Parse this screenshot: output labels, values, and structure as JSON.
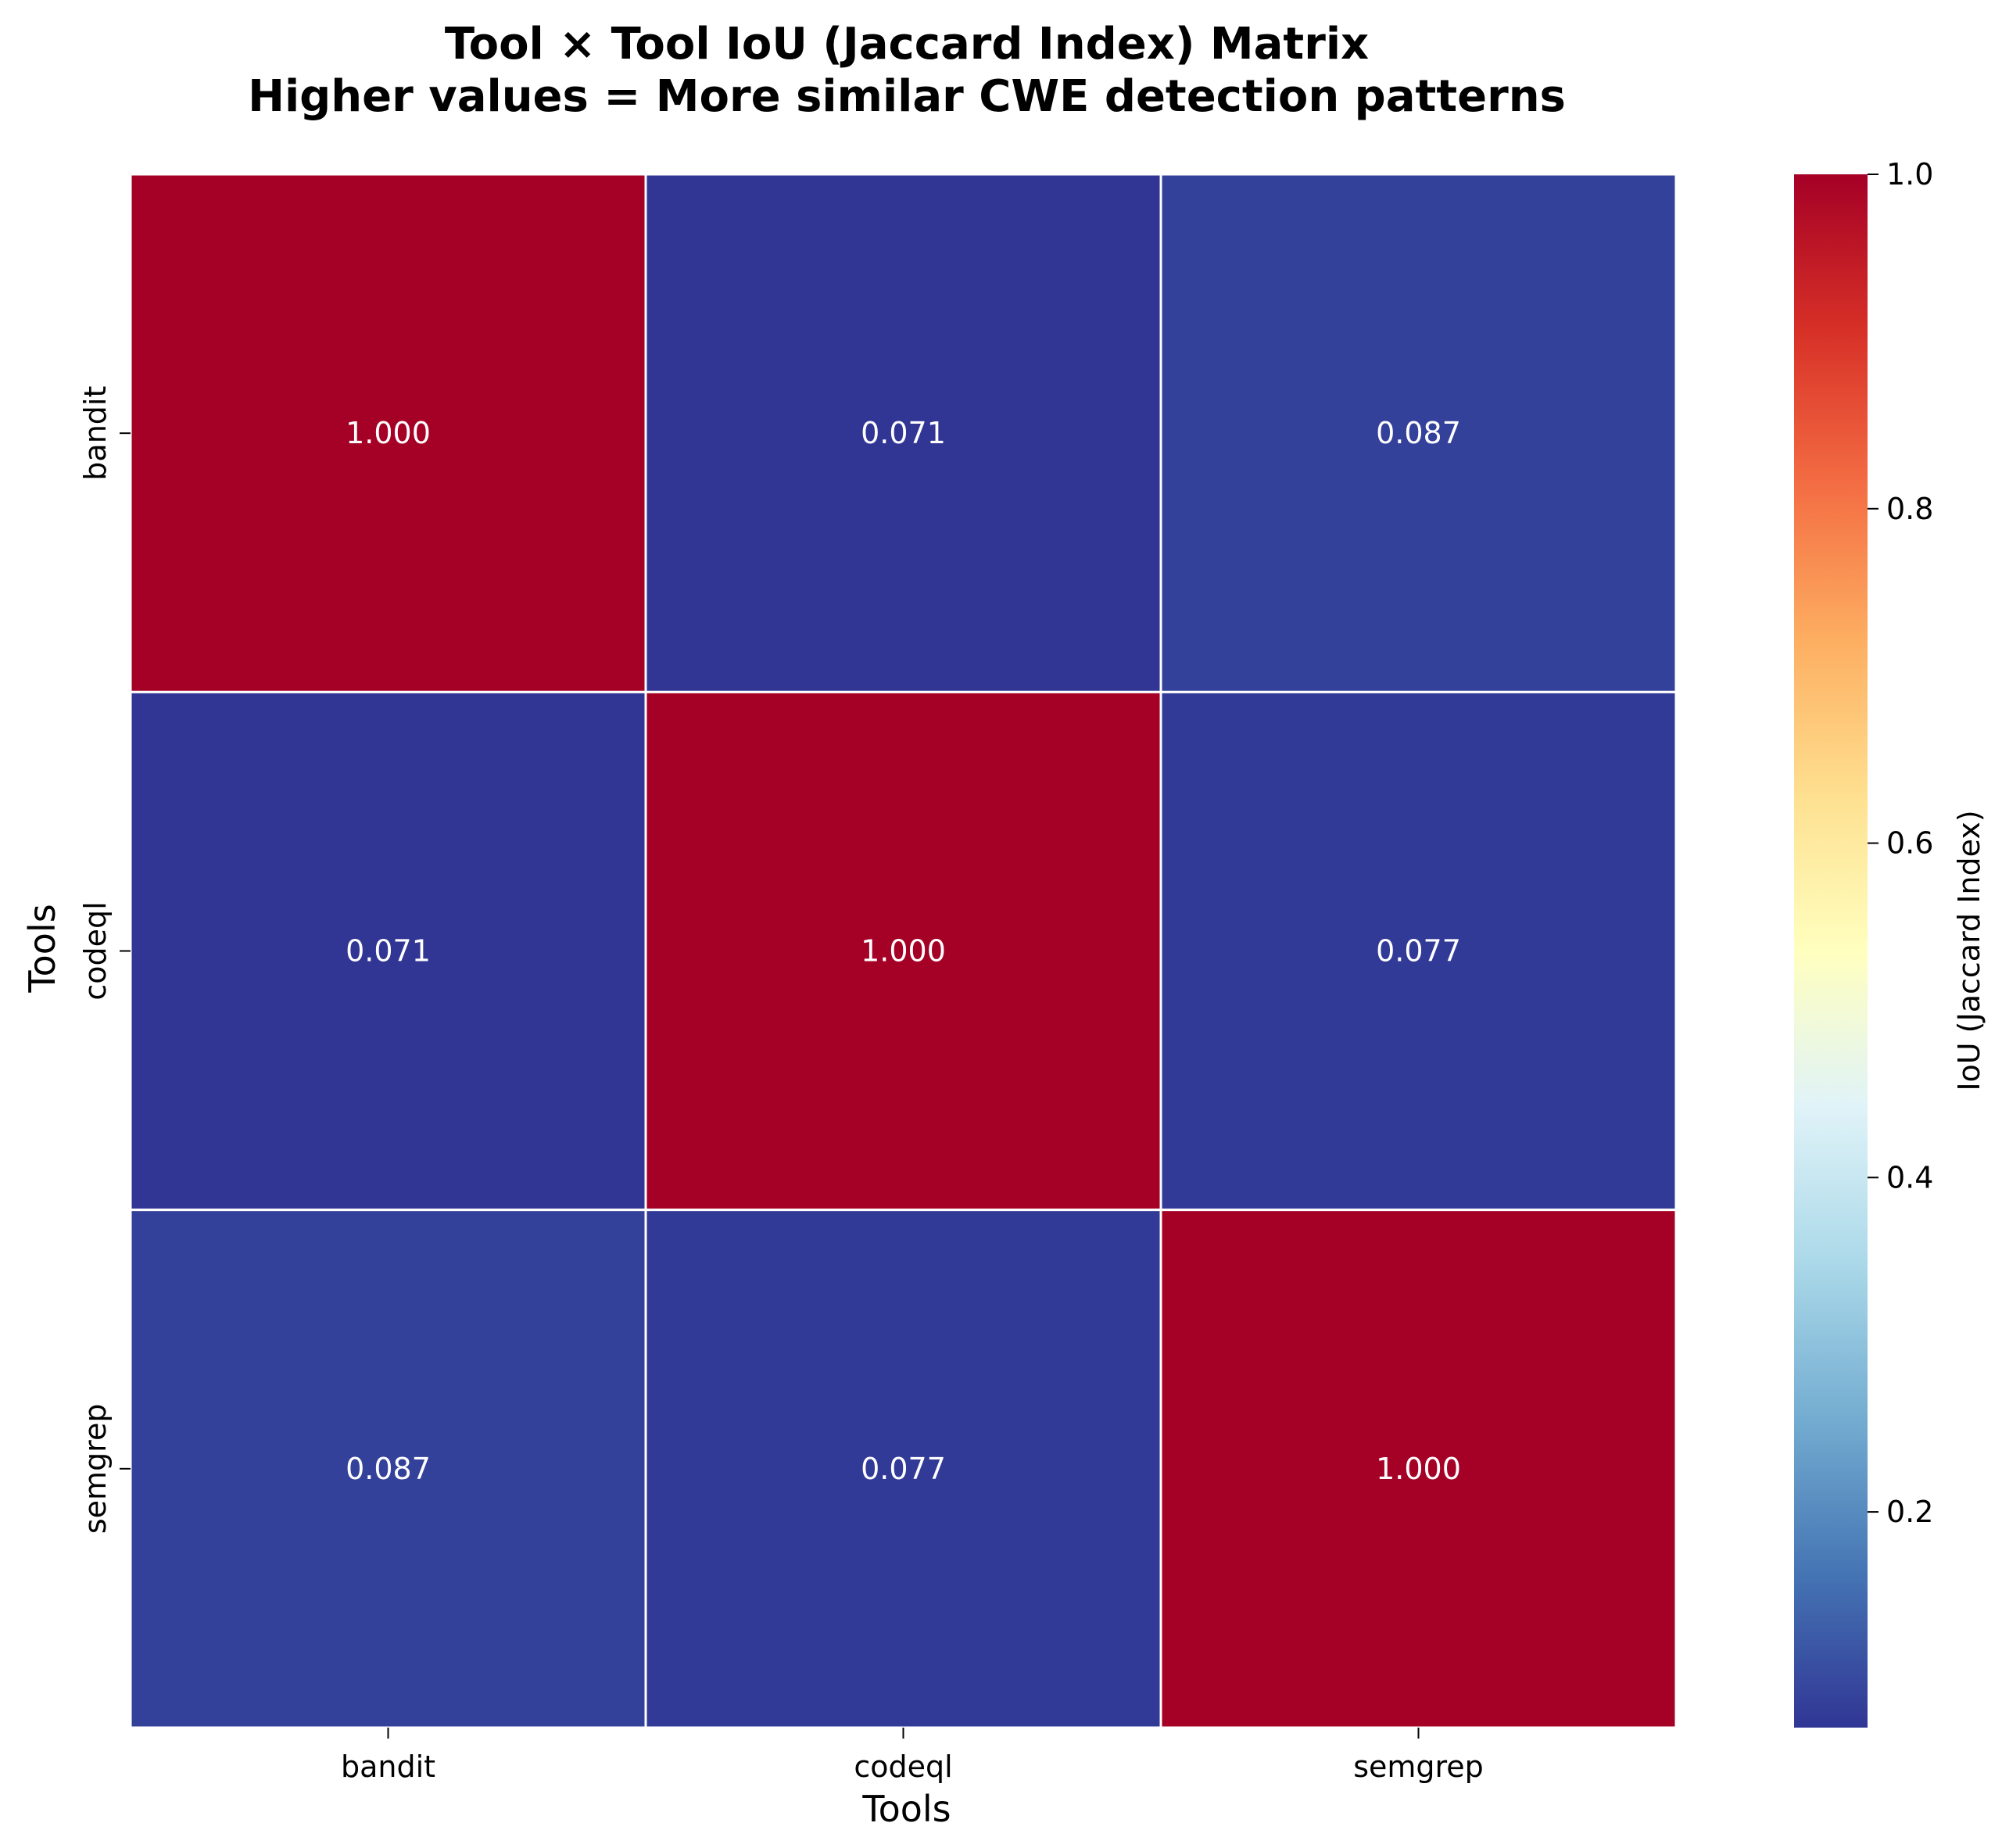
{
  "chart_data": {
    "type": "heatmap",
    "title_lines": [
      "Tool × Tool IoU (Jaccard Index) Matrix",
      "Higher values = More similar CWE detection patterns"
    ],
    "xlabel": "Tools",
    "ylabel": "Tools",
    "x_categories": [
      "bandit",
      "codeql",
      "semgrep"
    ],
    "y_categories": [
      "bandit",
      "codeql",
      "semgrep"
    ],
    "values": [
      [
        1.0,
        0.071,
        0.087
      ],
      [
        0.071,
        1.0,
        0.077
      ],
      [
        0.087,
        0.077,
        1.0
      ]
    ],
    "value_labels": [
      [
        "1.000",
        "0.071",
        "0.087"
      ],
      [
        "0.071",
        "1.000",
        "0.077"
      ],
      [
        "0.087",
        "0.077",
        "1.000"
      ]
    ],
    "colorbar": {
      "label": "IoU (Jaccard Index)",
      "range": [
        0.071,
        1.0
      ],
      "ticks": [
        0.2,
        0.4,
        0.6,
        0.8,
        1.0
      ],
      "tick_labels": [
        "0.2",
        "0.4",
        "0.6",
        "0.8",
        "1.0"
      ],
      "colormap": "RdYlBu_r"
    },
    "colormap_stops": [
      "#313695",
      "#4575b4",
      "#74add1",
      "#abd9e9",
      "#e0f3f8",
      "#ffffbf",
      "#fee090",
      "#fdae61",
      "#f46d43",
      "#d73027",
      "#a50026"
    ]
  }
}
